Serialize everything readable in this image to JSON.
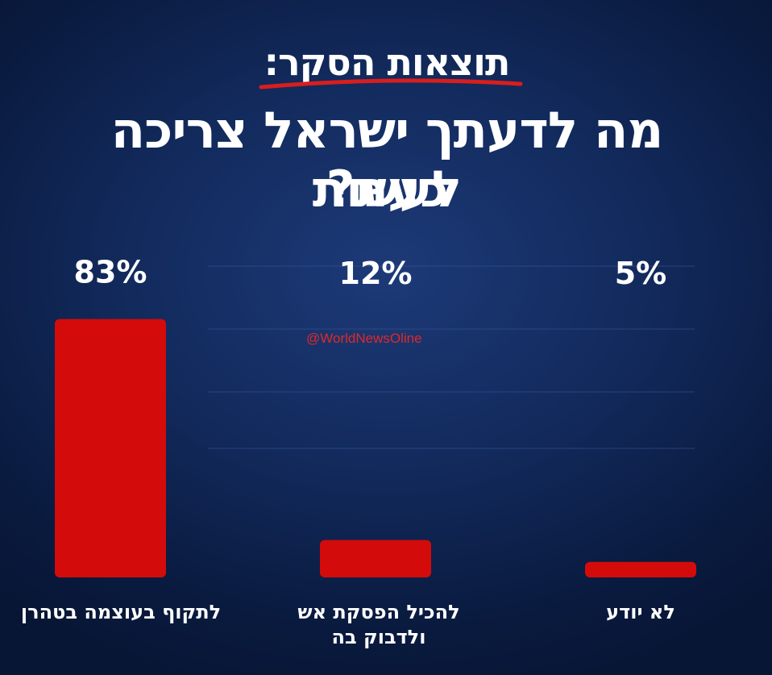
{
  "subtitle": "תוצאות הסקר:",
  "title_lines": [
    "מה לדעתך ישראל צריכה לעשות",
    "כעת?"
  ],
  "watermark": "@WorldNewsOline",
  "colors": {
    "bar": "#d40b0b",
    "underline": "#d81e1e",
    "text": "#ffffff",
    "watermark": "#e0282a",
    "grid": "#3b5a9c"
  },
  "chart_data": {
    "type": "bar",
    "title": "מה לדעתך ישראל צריכה לעשות כעת?",
    "categories": [
      "לתקוף בעוצמה בטהרן",
      "להכיל הפסקת אש ולדבוק בה",
      "לא יודע"
    ],
    "values": [
      83,
      12,
      5
    ],
    "value_labels": [
      "83%",
      "12%",
      "5%"
    ],
    "unit": "%",
    "ylim": [
      0,
      100
    ],
    "grid": true,
    "legend": "none"
  }
}
